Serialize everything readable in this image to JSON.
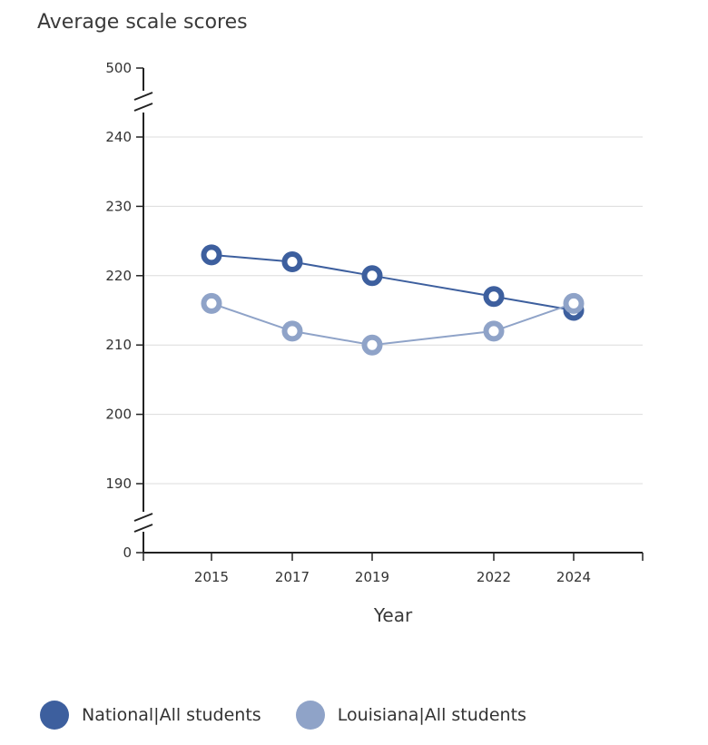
{
  "chart_data": {
    "type": "line",
    "title": "Average scale scores",
    "xlabel": "Year",
    "ylabel": "",
    "x": [
      "2015",
      "2017",
      "2019",
      "2022",
      "2024"
    ],
    "ylim": [
      190,
      240
    ],
    "axis_break_top": "500",
    "axis_break_bottom": "0",
    "yticks": [
      "240",
      "230",
      "220",
      "210",
      "200",
      "190"
    ],
    "grid": true,
    "legend_position": "bottom",
    "series": [
      {
        "name": "National|All students",
        "values": [
          223,
          222,
          220,
          217,
          215
        ],
        "color": "#3d5f9e"
      },
      {
        "name": "Louisiana|All students",
        "values": [
          216,
          212,
          210,
          212,
          216
        ],
        "color": "#8fa3c8"
      }
    ]
  }
}
